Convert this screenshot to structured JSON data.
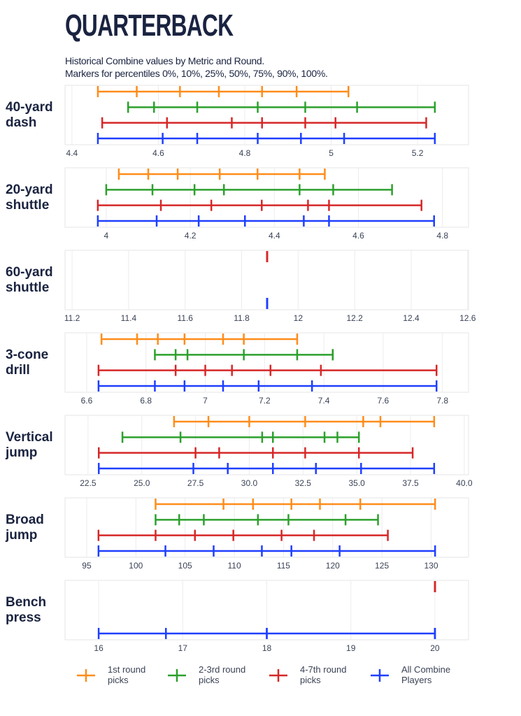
{
  "title": "QUARTERBACK",
  "subtitle": [
    "Historical Combine values by Metric and Round.",
    "Markers for percentiles 0%, 10%, 25%, 50%, 75%, 90%, 100%."
  ],
  "chart_data": [
    {
      "type": "percentile-range",
      "title": "40-yard dash",
      "xlim": [
        4.384,
        5.318
      ],
      "xticks": [
        4.4,
        4.6,
        4.8,
        5.0,
        5.2
      ],
      "series": [
        {
          "name": "1st round picks",
          "color": "#ff8c1a",
          "values": [
            4.46,
            4.55,
            4.65,
            4.74,
            4.84,
            4.92,
            5.04
          ]
        },
        {
          "name": "2-3rd round picks",
          "color": "#2ca02c",
          "values": [
            4.53,
            4.59,
            4.69,
            4.83,
            4.94,
            5.06,
            5.24
          ]
        },
        {
          "name": "4-7th round picks",
          "color": "#d62728",
          "values": [
            4.47,
            4.62,
            4.77,
            4.84,
            4.94,
            5.01,
            5.22
          ]
        },
        {
          "name": "All Combine Players",
          "color": "#1f3fff",
          "values": [
            4.46,
            4.61,
            4.69,
            4.83,
            4.93,
            5.03,
            5.24
          ]
        }
      ]
    },
    {
      "type": "percentile-range",
      "title": "20-yard shuttle",
      "xlim": [
        3.902,
        4.862
      ],
      "xticks": [
        4.0,
        4.2,
        4.4,
        4.6,
        4.8
      ],
      "series": [
        {
          "name": "1st round picks",
          "color": "#ff8c1a",
          "values": [
            4.03,
            4.1,
            4.17,
            4.27,
            4.36,
            4.46,
            4.52
          ]
        },
        {
          "name": "2-3rd round picks",
          "color": "#2ca02c",
          "values": [
            4.0,
            4.11,
            4.21,
            4.28,
            4.46,
            4.54,
            4.68
          ]
        },
        {
          "name": "4-7th round picks",
          "color": "#d62728",
          "values": [
            3.98,
            4.13,
            4.25,
            4.37,
            4.48,
            4.53,
            4.75
          ]
        },
        {
          "name": "All Combine Players",
          "color": "#1f3fff",
          "values": [
            3.98,
            4.12,
            4.22,
            4.33,
            4.47,
            4.53,
            4.78
          ]
        }
      ]
    },
    {
      "type": "percentile-range",
      "title": "60-yard shuttle",
      "xlim": [
        11.175,
        12.603
      ],
      "xticks": [
        11.2,
        11.4,
        11.6,
        11.8,
        12.0,
        12.2,
        12.4,
        12.6
      ],
      "series": [
        {
          "name": "4-7th round picks",
          "color": "#d62728",
          "values": [
            11.89,
            11.89,
            11.89,
            11.89,
            11.89,
            11.89,
            11.89
          ]
        },
        {
          "name": "All Combine Players",
          "color": "#1f3fff",
          "values": [
            11.89,
            11.89,
            11.89,
            11.89,
            11.89,
            11.89,
            11.89
          ]
        }
      ]
    },
    {
      "type": "percentile-range",
      "title": "3-cone drill",
      "xlim": [
        6.527,
        7.888
      ],
      "xticks": [
        6.6,
        6.8,
        7.0,
        7.2,
        7.4,
        7.6,
        7.8
      ],
      "series": [
        {
          "name": "1st round picks",
          "color": "#ff8c1a",
          "values": [
            6.65,
            6.77,
            6.84,
            6.93,
            7.06,
            7.13,
            7.31
          ]
        },
        {
          "name": "2-3rd round picks",
          "color": "#2ca02c",
          "values": [
            6.83,
            6.9,
            6.94,
            7.13,
            7.31,
            7.43,
            7.43
          ]
        },
        {
          "name": "4-7th round picks",
          "color": "#d62728",
          "values": [
            6.64,
            6.9,
            7.0,
            7.09,
            7.22,
            7.39,
            7.78
          ]
        },
        {
          "name": "All Combine Players",
          "color": "#1f3fff",
          "values": [
            6.64,
            6.83,
            6.93,
            7.06,
            7.18,
            7.36,
            7.78
          ]
        }
      ]
    },
    {
      "type": "percentile-range",
      "title": "Vertical jump",
      "xlim": [
        21.43,
        40.2
      ],
      "xticks": [
        {
          "value": 22.5,
          "label": "22.5"
        },
        {
          "value": 25,
          "label": "25.0"
        },
        {
          "value": 27.5,
          "label": "27.5"
        },
        {
          "value": 30,
          "label": "30.0"
        },
        {
          "value": 32.5,
          "label": "32.5"
        },
        {
          "value": 35,
          "label": "35.0"
        },
        {
          "value": 37.5,
          "label": "37.5"
        },
        {
          "value": 40,
          "label": "40.0"
        }
      ],
      "series": [
        {
          "name": "1st round picks",
          "color": "#ff8c1a",
          "values": [
            26.5,
            28.1,
            30.0,
            32.6,
            35.3,
            36.1,
            38.6
          ]
        },
        {
          "name": "2-3rd round picks",
          "color": "#2ca02c",
          "values": [
            24.1,
            26.8,
            30.6,
            31.1,
            33.5,
            34.1,
            35.1
          ]
        },
        {
          "name": "4-7th round picks",
          "color": "#d62728",
          "values": [
            23.0,
            27.5,
            28.6,
            31.1,
            32.6,
            35.1,
            37.6
          ]
        },
        {
          "name": "All Combine Players",
          "color": "#1f3fff",
          "values": [
            23.0,
            27.4,
            29.0,
            31.1,
            33.1,
            35.2,
            38.6
          ]
        }
      ]
    },
    {
      "type": "percentile-range",
      "title": "Broad jump",
      "xlim": [
        92.8,
        133.8
      ],
      "xticks": [
        95,
        100,
        105,
        110,
        115,
        120,
        125,
        130
      ],
      "series": [
        {
          "name": "1st round picks",
          "color": "#ff8c1a",
          "values": [
            102,
            108.9,
            111.9,
            115.8,
            118.7,
            122.8,
            130.4
          ]
        },
        {
          "name": "2-3rd round picks",
          "color": "#2ca02c",
          "values": [
            102,
            104.4,
            106.9,
            112.4,
            115.5,
            121.3,
            124.6
          ]
        },
        {
          "name": "4-7th round picks",
          "color": "#d62728",
          "values": [
            96.2,
            102,
            106,
            109.9,
            114.8,
            118.1,
            125.6
          ]
        },
        {
          "name": "All Combine Players",
          "color": "#1f3fff",
          "values": [
            96.2,
            103,
            107.9,
            112.8,
            115.8,
            120.7,
            130.4
          ]
        }
      ]
    },
    {
      "type": "percentile-range",
      "title": "Bench press",
      "xlim": [
        15.6,
        20.4
      ],
      "xticks": [
        16,
        17,
        18,
        19,
        20
      ],
      "series": [
        {
          "name": "4-7th round picks",
          "color": "#d62728",
          "values": [
            20,
            20,
            20,
            20,
            20,
            20,
            20
          ]
        },
        {
          "name": "All Combine Players",
          "color": "#1f3fff",
          "values": [
            16,
            16.8,
            18,
            18,
            20,
            20,
            20
          ]
        }
      ]
    }
  ]
}
